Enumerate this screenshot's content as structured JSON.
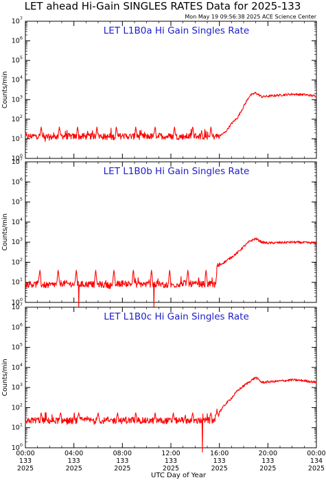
{
  "title": "LET ahead Hi-Gain SINGLES RATES Data for 2025-133",
  "subtitle": "Mon May 19 09:56:38 2025 ACE Science Center",
  "xlabel": "UTC Day of Year",
  "colors": {
    "series": "#ff0000",
    "panel_title": "#1c1ccc",
    "axes": "#000000"
  },
  "chart_data": [
    {
      "type": "line",
      "title": "LET L1B0a Hi Gain Singles Rate",
      "ylabel": "Counts/min",
      "yscale": "log",
      "ylim": [
        1,
        10000000
      ],
      "xlim": [
        0,
        24
      ],
      "yticks": [
        "10^0",
        "10^1",
        "10^2",
        "10^3",
        "10^4",
        "10^5",
        "10^6",
        "10^7"
      ],
      "series": [
        {
          "x": [
            0,
            1,
            2,
            3,
            4,
            5,
            6,
            7,
            8,
            9,
            10,
            11,
            12,
            13,
            14,
            15,
            15.5,
            16,
            16.5,
            17,
            17.5,
            18,
            18.5,
            19,
            19.5,
            20,
            21,
            22,
            23,
            24
          ],
          "values": [
            13,
            14,
            12,
            14,
            13,
            13,
            14,
            12,
            14,
            13,
            13,
            14,
            13,
            13,
            14,
            13,
            13,
            14,
            22,
            60,
            120,
            450,
            1600,
            2200,
            1400,
            1500,
            1700,
            1900,
            1800,
            1500
          ],
          "spikes": [
            1.3,
            2.8,
            4.3,
            5.9,
            7.5,
            9.1,
            10.7,
            12.3,
            13.8,
            15.3
          ],
          "spike_level": 40
        }
      ]
    },
    {
      "type": "line",
      "title": "LET L1B0b Hi Gain Singles Rate",
      "ylabel": "Counts/min",
      "yscale": "log",
      "ylim": [
        1,
        10000000
      ],
      "xlim": [
        0,
        24
      ],
      "yticks": [
        "10^0",
        "10^1",
        "10^2",
        "10^3",
        "10^4",
        "10^5",
        "10^6",
        "10^7"
      ],
      "series": [
        {
          "x": [
            0,
            1,
            2,
            3,
            4,
            5,
            6,
            7,
            8,
            9,
            10,
            11,
            12,
            13,
            14,
            15,
            15.7,
            15.8,
            16.5,
            17,
            17.5,
            18,
            18.5,
            19,
            19.5,
            20,
            21,
            22,
            23,
            24
          ],
          "values": [
            8,
            8,
            7,
            9,
            8,
            8,
            8,
            7,
            9,
            8,
            8,
            8,
            7,
            9,
            8,
            8,
            8,
            60,
            110,
            180,
            300,
            600,
            1100,
            1500,
            1000,
            900,
            950,
            1000,
            950,
            900
          ],
          "spikes": [
            1.2,
            2.7,
            4.2,
            5.8,
            7.3,
            8.9,
            10.4,
            11.9,
            13.4,
            14.9
          ],
          "spike_level": 40,
          "dips": [
            4.4,
            10.6
          ]
        }
      ]
    },
    {
      "type": "line",
      "title": "LET L1B0c Hi Gain Singles Rate",
      "ylabel": "Counts/min",
      "yscale": "log",
      "ylim": [
        1,
        10000000
      ],
      "xlim": [
        0,
        24
      ],
      "yticks": [
        "10^0",
        "10^1",
        "10^2",
        "10^3",
        "10^4",
        "10^5",
        "10^6",
        "10^7"
      ],
      "series": [
        {
          "x": [
            0,
            1,
            2,
            3,
            4,
            5,
            6,
            7,
            8,
            9,
            10,
            11,
            12,
            13,
            14,
            15,
            15.5,
            16,
            16.5,
            17,
            17.5,
            18,
            18.5,
            19,
            19.5,
            20,
            21,
            22,
            23,
            24
          ],
          "values": [
            22,
            24,
            22,
            23,
            22,
            24,
            22,
            23,
            22,
            24,
            22,
            23,
            22,
            24,
            22,
            23,
            22,
            60,
            150,
            300,
            700,
            1200,
            2000,
            3200,
            1800,
            1900,
            2100,
            2400,
            2200,
            1800
          ],
          "spikes": [
            1.3,
            2.9,
            4.4,
            6.0,
            7.6,
            9.1,
            10.7,
            12.2,
            13.8,
            15.3
          ],
          "spike_level": 55,
          "dips": [
            14.6
          ]
        }
      ]
    }
  ],
  "xticks": [
    {
      "hour": 0,
      "time": "00:00",
      "doy": "133",
      "year": "2025"
    },
    {
      "hour": 4,
      "time": "04:00",
      "doy": "133",
      "year": "2025"
    },
    {
      "hour": 8,
      "time": "08:00",
      "doy": "133",
      "year": "2025"
    },
    {
      "hour": 12,
      "time": "12:00",
      "doy": "133",
      "year": "2025"
    },
    {
      "hour": 16,
      "time": "16:00",
      "doy": "133",
      "year": "2025"
    },
    {
      "hour": 20,
      "time": "20:00",
      "doy": "133",
      "year": "2025"
    },
    {
      "hour": 24,
      "time": "00:00",
      "doy": "134",
      "year": "2025"
    }
  ]
}
